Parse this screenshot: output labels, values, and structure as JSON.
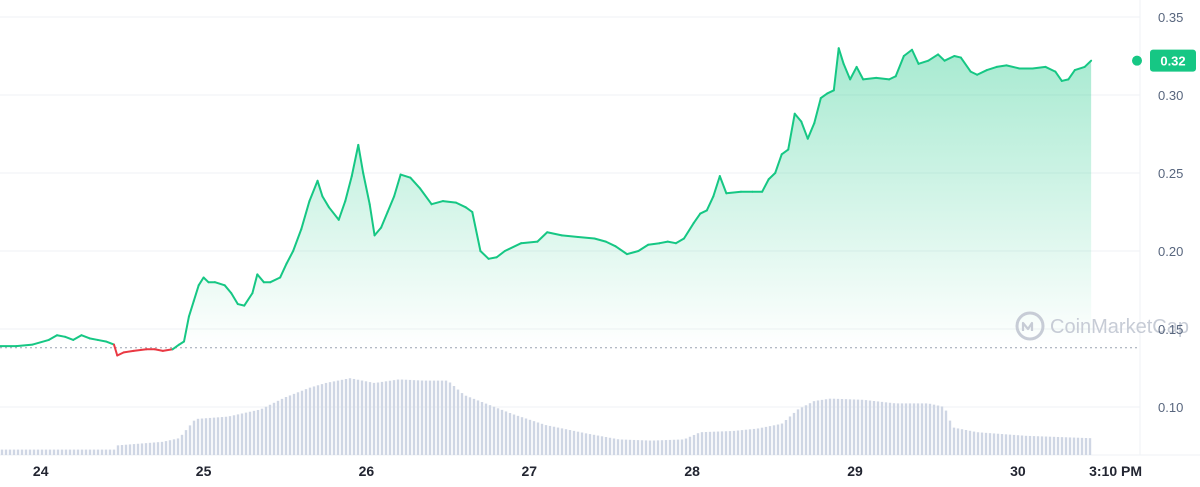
{
  "colors": {
    "up": "#16c784",
    "down": "#ea3943",
    "volume": "#cfd6e4",
    "grid": "#eff2f5",
    "baseline": "#9aa3b1"
  },
  "watermark": {
    "text": "CoinMarketCap"
  },
  "current_price": {
    "label": "0.32"
  },
  "chart_data": {
    "type": "line",
    "title": "",
    "xlabel": "",
    "ylabel": "",
    "ylim": [
      0.07,
      0.355
    ],
    "y_ticks": [
      "0.35",
      "0.30",
      "0.25",
      "0.20",
      "0.15",
      "0.10"
    ],
    "x_tick_labels": [
      {
        "t": 0.25,
        "label": "24"
      },
      {
        "t": 1.25,
        "label": "25"
      },
      {
        "t": 2.25,
        "label": "26"
      },
      {
        "t": 3.25,
        "label": "27"
      },
      {
        "t": 4.25,
        "label": "28"
      },
      {
        "t": 5.25,
        "label": "29"
      },
      {
        "t": 6.25,
        "label": "30"
      },
      {
        "t": 6.85,
        "label": "3:10 PM"
      }
    ],
    "baseline_price": 0.138,
    "series": [
      {
        "values": [
          [
            0.0,
            0.139
          ],
          [
            0.1,
            0.139
          ],
          [
            0.2,
            0.14
          ],
          [
            0.3,
            0.143
          ],
          [
            0.35,
            0.146
          ],
          [
            0.4,
            0.145
          ],
          [
            0.45,
            0.143
          ],
          [
            0.5,
            0.146
          ],
          [
            0.55,
            0.144
          ],
          [
            0.6,
            0.143
          ],
          [
            0.65,
            0.142
          ],
          [
            0.7,
            0.14
          ],
          [
            0.72,
            0.133
          ],
          [
            0.76,
            0.135
          ],
          [
            0.82,
            0.136
          ],
          [
            0.9,
            0.137
          ],
          [
            0.95,
            0.137
          ],
          [
            1.0,
            0.136
          ],
          [
            1.06,
            0.137
          ],
          [
            1.1,
            0.14
          ],
          [
            1.13,
            0.142
          ],
          [
            1.16,
            0.158
          ],
          [
            1.19,
            0.168
          ],
          [
            1.22,
            0.178
          ],
          [
            1.25,
            0.183
          ],
          [
            1.28,
            0.18
          ],
          [
            1.32,
            0.18
          ],
          [
            1.38,
            0.178
          ],
          [
            1.42,
            0.173
          ],
          [
            1.46,
            0.166
          ],
          [
            1.5,
            0.165
          ],
          [
            1.55,
            0.173
          ],
          [
            1.58,
            0.185
          ],
          [
            1.62,
            0.18
          ],
          [
            1.66,
            0.18
          ],
          [
            1.72,
            0.183
          ],
          [
            1.76,
            0.192
          ],
          [
            1.8,
            0.2
          ],
          [
            1.85,
            0.214
          ],
          [
            1.9,
            0.232
          ],
          [
            1.95,
            0.245
          ],
          [
            1.98,
            0.235
          ],
          [
            2.02,
            0.228
          ],
          [
            2.08,
            0.22
          ],
          [
            2.12,
            0.232
          ],
          [
            2.16,
            0.248
          ],
          [
            2.2,
            0.268
          ],
          [
            2.23,
            0.25
          ],
          [
            2.27,
            0.23
          ],
          [
            2.3,
            0.21
          ],
          [
            2.34,
            0.215
          ],
          [
            2.38,
            0.225
          ],
          [
            2.42,
            0.235
          ],
          [
            2.46,
            0.249
          ],
          [
            2.52,
            0.247
          ],
          [
            2.58,
            0.24
          ],
          [
            2.65,
            0.23
          ],
          [
            2.72,
            0.232
          ],
          [
            2.8,
            0.231
          ],
          [
            2.86,
            0.228
          ],
          [
            2.9,
            0.225
          ],
          [
            2.95,
            0.2
          ],
          [
            3.0,
            0.195
          ],
          [
            3.05,
            0.196
          ],
          [
            3.1,
            0.2
          ],
          [
            3.2,
            0.205
          ],
          [
            3.3,
            0.206
          ],
          [
            3.36,
            0.212
          ],
          [
            3.45,
            0.21
          ],
          [
            3.55,
            0.209
          ],
          [
            3.65,
            0.208
          ],
          [
            3.72,
            0.206
          ],
          [
            3.78,
            0.203
          ],
          [
            3.85,
            0.198
          ],
          [
            3.92,
            0.2
          ],
          [
            3.98,
            0.204
          ],
          [
            4.05,
            0.205
          ],
          [
            4.1,
            0.206
          ],
          [
            4.15,
            0.205
          ],
          [
            4.2,
            0.208
          ],
          [
            4.26,
            0.218
          ],
          [
            4.3,
            0.224
          ],
          [
            4.34,
            0.226
          ],
          [
            4.38,
            0.235
          ],
          [
            4.42,
            0.248
          ],
          [
            4.46,
            0.237
          ],
          [
            4.55,
            0.238
          ],
          [
            4.62,
            0.238
          ],
          [
            4.68,
            0.238
          ],
          [
            4.72,
            0.246
          ],
          [
            4.76,
            0.25
          ],
          [
            4.8,
            0.262
          ],
          [
            4.84,
            0.265
          ],
          [
            4.88,
            0.288
          ],
          [
            4.92,
            0.283
          ],
          [
            4.96,
            0.272
          ],
          [
            5.0,
            0.282
          ],
          [
            5.04,
            0.298
          ],
          [
            5.08,
            0.301
          ],
          [
            5.12,
            0.303
          ],
          [
            5.15,
            0.33
          ],
          [
            5.18,
            0.32
          ],
          [
            5.22,
            0.31
          ],
          [
            5.26,
            0.318
          ],
          [
            5.3,
            0.31
          ],
          [
            5.38,
            0.311
          ],
          [
            5.46,
            0.31
          ],
          [
            5.5,
            0.312
          ],
          [
            5.55,
            0.325
          ],
          [
            5.6,
            0.329
          ],
          [
            5.64,
            0.32
          ],
          [
            5.7,
            0.322
          ],
          [
            5.76,
            0.326
          ],
          [
            5.8,
            0.322
          ],
          [
            5.86,
            0.325
          ],
          [
            5.9,
            0.324
          ],
          [
            5.96,
            0.315
          ],
          [
            6.0,
            0.313
          ],
          [
            6.06,
            0.316
          ],
          [
            6.12,
            0.318
          ],
          [
            6.18,
            0.319
          ],
          [
            6.26,
            0.317
          ],
          [
            6.34,
            0.317
          ],
          [
            6.42,
            0.318
          ],
          [
            6.48,
            0.315
          ],
          [
            6.52,
            0.309
          ],
          [
            6.56,
            0.31
          ],
          [
            6.6,
            0.316
          ],
          [
            6.66,
            0.318
          ],
          [
            6.7,
            0.322
          ]
        ]
      }
    ],
    "volume_series": {
      "values": [
        [
          0.0,
          0.0045
        ],
        [
          0.7,
          0.0045
        ],
        [
          0.72,
          0.008
        ],
        [
          1.0,
          0.011
        ],
        [
          1.1,
          0.014
        ],
        [
          1.2,
          0.03
        ],
        [
          1.4,
          0.032
        ],
        [
          1.6,
          0.038
        ],
        [
          1.75,
          0.048
        ],
        [
          1.9,
          0.056
        ],
        [
          2.0,
          0.06
        ],
        [
          2.15,
          0.064
        ],
        [
          2.3,
          0.06
        ],
        [
          2.45,
          0.063
        ],
        [
          2.6,
          0.062
        ],
        [
          2.75,
          0.062
        ],
        [
          2.85,
          0.05
        ],
        [
          3.0,
          0.042
        ],
        [
          3.15,
          0.034
        ],
        [
          3.35,
          0.025
        ],
        [
          3.6,
          0.018
        ],
        [
          3.8,
          0.013
        ],
        [
          4.0,
          0.012
        ],
        [
          4.2,
          0.013
        ],
        [
          4.3,
          0.019
        ],
        [
          4.5,
          0.02
        ],
        [
          4.65,
          0.022
        ],
        [
          4.8,
          0.026
        ],
        [
          4.9,
          0.038
        ],
        [
          5.0,
          0.045
        ],
        [
          5.1,
          0.047
        ],
        [
          5.3,
          0.046
        ],
        [
          5.5,
          0.043
        ],
        [
          5.7,
          0.043
        ],
        [
          5.8,
          0.04
        ],
        [
          5.85,
          0.023
        ],
        [
          6.0,
          0.019
        ],
        [
          6.3,
          0.016
        ],
        [
          6.7,
          0.014
        ]
      ]
    }
  }
}
